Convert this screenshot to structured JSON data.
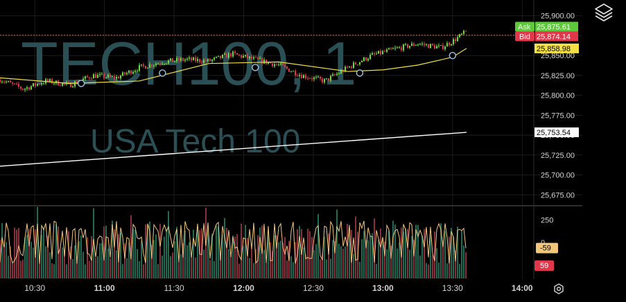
{
  "chart_data": [
    {
      "type": "candlestick",
      "symbol": "TECH100, 1",
      "subtitle": "USA Tech 100",
      "x_time_ticks": [
        "10:30",
        "11:00",
        "11:30",
        "12:00",
        "12:30",
        "13:00",
        "13:30",
        "14:00"
      ],
      "y_ticks": [
        "25,900.00",
        "25,875.00",
        "25,850.00",
        "25,825.00",
        "25,800.00",
        "25,775.00",
        "25,750.00",
        "25,725.00",
        "25,700.00",
        "25,675.00"
      ],
      "ylim": [
        25670,
        25905
      ],
      "ask": {
        "label": "Ask",
        "value": "25,875.61"
      },
      "bid": {
        "label": "Bid",
        "value": "25,874.14"
      },
      "ma_fast": {
        "value": "25,858.98",
        "color": "#f2e045"
      },
      "ma_slow": {
        "value": "25,753.54",
        "color": "#ffffff"
      },
      "price_path": [
        [
          "10:15",
          25820
        ],
        [
          "10:25",
          25808
        ],
        [
          "10:35",
          25818
        ],
        [
          "10:45",
          25813
        ],
        [
          "10:55",
          25825
        ],
        [
          "11:05",
          25822
        ],
        [
          "11:15",
          25835
        ],
        [
          "11:25",
          25842
        ],
        [
          "11:35",
          25845
        ],
        [
          "11:45",
          25843
        ],
        [
          "11:55",
          25852
        ],
        [
          "12:05",
          25845
        ],
        [
          "12:15",
          25838
        ],
        [
          "12:25",
          25825
        ],
        [
          "12:35",
          25818
        ],
        [
          "12:45",
          25835
        ],
        [
          "12:55",
          25850
        ],
        [
          "13:05",
          25858
        ],
        [
          "13:15",
          25865
        ],
        [
          "13:25",
          25860
        ],
        [
          "13:30",
          25868
        ],
        [
          "13:36",
          25880
        ]
      ],
      "ma_fast_path": [
        [
          "10:15",
          25822
        ],
        [
          "10:45",
          25815
        ],
        [
          "11:15",
          25818
        ],
        [
          "11:45",
          25840
        ],
        [
          "12:15",
          25842
        ],
        [
          "12:45",
          25830
        ],
        [
          "13:00",
          25832
        ],
        [
          "13:15",
          25838
        ],
        [
          "13:30",
          25848
        ],
        [
          "13:36",
          25858.98
        ]
      ],
      "ma_slow_path": [
        [
          "10:15",
          25711
        ],
        [
          "13:36",
          25753.54
        ]
      ],
      "markers": [
        [
          "10:50",
          25815
        ],
        [
          "11:25",
          25828
        ],
        [
          "12:05",
          25835
        ],
        [
          "12:50",
          25828
        ],
        [
          "13:30",
          25850
        ]
      ],
      "colors": {
        "up": "#6fdc3a",
        "down": "#e0384a",
        "ask": "#5cc83a",
        "bid": "#e0384a"
      }
    },
    {
      "type": "bar+line",
      "name": "oscillator",
      "y_ticks": [
        "250",
        "0"
      ],
      "current_line_value": "-59",
      "current_bar_value": "59",
      "line_color": "#f3c77a",
      "bar_colors": {
        "up": "#1f6b54",
        "down": "#8a2f3b"
      }
    }
  ],
  "icons": {
    "layers": "layers-icon",
    "settings": "settings-gear-icon"
  }
}
